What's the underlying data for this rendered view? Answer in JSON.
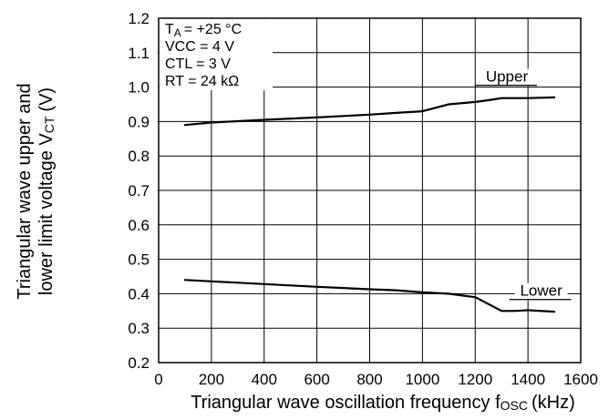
{
  "chart_data": {
    "type": "line",
    "title": "",
    "xlabel": "Triangular wave oscillation frequency f",
    "xlabel_subscript": "OSC",
    "xlabel_unit": "(kHz)",
    "ylabel_line1": "Triangular wave upper and",
    "ylabel_line2_prefix": "lower limit voltage V",
    "ylabel_line2_subscript": "CT",
    "ylabel_line2_suffix": "(V)",
    "xlim": [
      0,
      1600
    ],
    "ylim": [
      0.2,
      1.2
    ],
    "xticks": [
      "0",
      "200",
      "400",
      "600",
      "800",
      "1000",
      "1200",
      "1400",
      "1600"
    ],
    "yticks": [
      "0.2",
      "0.3",
      "0.4",
      "0.5",
      "0.6",
      "0.7",
      "0.8",
      "0.9",
      "1.0",
      "1.1",
      "1.2"
    ],
    "grid": true,
    "conditions": [
      {
        "prefix": "T",
        "subscript": "A",
        "rest": "= +25 °C"
      },
      {
        "prefix": "VCC = 4 V",
        "subscript": "",
        "rest": ""
      },
      {
        "prefix": "CTL = 3 V",
        "subscript": "",
        "rest": ""
      },
      {
        "prefix": "RT = 24 kΩ",
        "subscript": "",
        "rest": ""
      }
    ],
    "series": [
      {
        "name": "Upper",
        "x": [
          100,
          200,
          400,
          600,
          800,
          900,
          1000,
          1050,
          1100,
          1200,
          1250,
          1300,
          1350,
          1400,
          1500
        ],
        "y": [
          0.89,
          0.897,
          0.905,
          0.912,
          0.92,
          0.925,
          0.93,
          0.94,
          0.95,
          0.957,
          0.962,
          0.968,
          0.968,
          0.968,
          0.97
        ]
      },
      {
        "name": "Lower",
        "x": [
          100,
          200,
          400,
          600,
          800,
          900,
          1000,
          1100,
          1200,
          1250,
          1300,
          1350,
          1400,
          1500
        ],
        "y": [
          0.44,
          0.436,
          0.428,
          0.42,
          0.413,
          0.41,
          0.404,
          0.4,
          0.39,
          0.37,
          0.35,
          0.35,
          0.352,
          0.348
        ]
      }
    ],
    "line_color": "#000000"
  }
}
